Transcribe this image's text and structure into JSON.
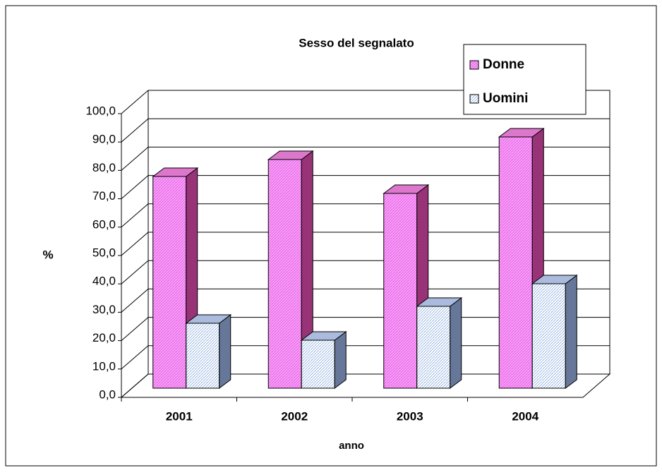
{
  "chart_data": {
    "type": "bar3d",
    "title": "Sesso del segnalato",
    "categories": [
      "2001",
      "2002",
      "2003",
      "2004"
    ],
    "series": [
      {
        "name": "Donne",
        "color": "#ff99ff",
        "values": [
          75,
          81,
          69,
          89
        ]
      },
      {
        "name": "Uomini",
        "color": "#cce8ff",
        "values": [
          23,
          17,
          29,
          37
        ]
      }
    ],
    "ylim": [
      0,
      100
    ],
    "yticks": [
      {
        "value": 0,
        "label": "0,0"
      },
      {
        "value": 10,
        "label": "10,0"
      },
      {
        "value": 20,
        "label": "20,0"
      },
      {
        "value": 30,
        "label": "30,0"
      },
      {
        "value": 40,
        "label": "40,0"
      },
      {
        "value": 50,
        "label": "50,0"
      },
      {
        "value": 60,
        "label": "60,0"
      },
      {
        "value": 70,
        "label": "70,0"
      },
      {
        "value": 80,
        "label": "80,0"
      },
      {
        "value": 90,
        "label": "90,0"
      },
      {
        "value": 100,
        "label": "100,0"
      }
    ],
    "xlabel": "anno",
    "ylabel": "%",
    "grid": true,
    "legend": "top-right"
  }
}
